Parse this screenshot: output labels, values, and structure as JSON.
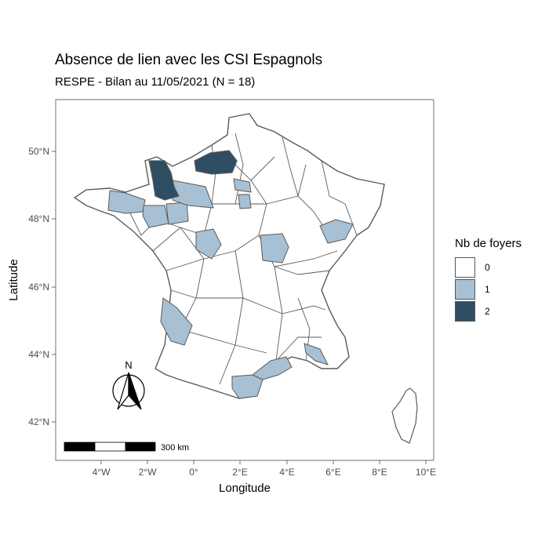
{
  "title": "Absence de lien avec les CSI Espagnols",
  "subtitle": "RESPE - Bilan au 11/05/2021 (N = 18)",
  "axes": {
    "xlabel": "Longitude",
    "ylabel": "Latitude",
    "x_ticks": [
      "4°W",
      "2°W",
      "0°",
      "2°E",
      "4°E",
      "6°E",
      "8°E",
      "10°E"
    ],
    "y_ticks": [
      "42°N",
      "44°N",
      "46°N",
      "48°N",
      "50°N"
    ]
  },
  "legend": {
    "title": "Nb de foyers",
    "items": [
      {
        "label": "0",
        "color": "#ffffff"
      },
      {
        "label": "1",
        "color": "#a7c0d4"
      },
      {
        "label": "2",
        "color": "#2f4d63"
      }
    ]
  },
  "north_arrow": {
    "label": "N"
  },
  "scale_bar": {
    "label": "300 km"
  },
  "colors": {
    "zero": "#ffffff",
    "one": "#a7c0d4",
    "two": "#2f4d63",
    "border": "#5a5a5a"
  }
}
